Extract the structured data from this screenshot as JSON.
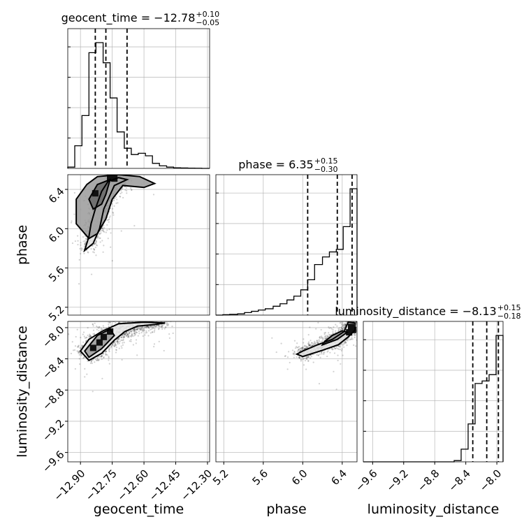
{
  "chart_data": {
    "type": "corner",
    "parameters": [
      "geocent_time",
      "phase",
      "luminosity_distance"
    ],
    "axis_labels": {
      "geocent_time": "geocent_time",
      "phase": "phase",
      "luminosity_distance": "luminosity_distance"
    },
    "titles": [
      {
        "param": "geocent_time",
        "prefix": "geocent_time = ",
        "value": "−12.78",
        "plus": "+0.10",
        "minus": "−0.05"
      },
      {
        "param": "phase",
        "prefix": "phase = ",
        "value": "6.35",
        "plus": "+0.15",
        "minus": "−0.30"
      },
      {
        "param": "luminosity_distance",
        "prefix": "luminosity_distance = ",
        "value": "−8.13",
        "plus": "+0.15",
        "minus": "−0.18"
      }
    ],
    "ranges": {
      "geocent_time": [
        -12.96,
        -12.29
      ],
      "phase": [
        5.12,
        6.55
      ],
      "luminosity_distance": [
        -9.72,
        -7.92
      ]
    },
    "ticks": {
      "geocent_time": [
        -12.9,
        -12.75,
        -12.6,
        -12.45,
        -12.3
      ],
      "phase": [
        5.2,
        5.6,
        6.0,
        6.4
      ],
      "luminosity_distance": [
        -9.6,
        -9.2,
        -8.8,
        -8.4,
        -8.0
      ]
    },
    "tick_labels": {
      "geocent_time": [
        "−12.90",
        "−12.75",
        "−12.60",
        "−12.45",
        "−12.30"
      ],
      "phase": [
        "5.2",
        "5.6",
        "6.0",
        "6.4"
      ],
      "luminosity_distance": [
        "−9.6",
        "−9.2",
        "−8.8",
        "−8.4",
        "−8.0"
      ]
    },
    "quantiles": {
      "geocent_time": [
        -12.83,
        -12.78,
        -12.68
      ],
      "phase": [
        6.05,
        6.35,
        6.5
      ],
      "luminosity_distance": [
        -8.31,
        -8.13,
        -7.98
      ]
    },
    "histograms": {
      "geocent_time": {
        "edges": [
          -12.96,
          -12.927,
          -12.893,
          -12.86,
          -12.827,
          -12.793,
          -12.76,
          -12.727,
          -12.693,
          -12.66,
          -12.627,
          -12.593,
          -12.56,
          -12.527,
          -12.493,
          -12.46,
          -12.427,
          -12.393,
          -12.36,
          -12.327,
          -12.29
        ],
        "counts": [
          0.01,
          0.18,
          0.42,
          0.92,
          1.0,
          0.84,
          0.56,
          0.29,
          0.16,
          0.11,
          0.12,
          0.1,
          0.04,
          0.02,
          0.01,
          0.005,
          0.003,
          0.002,
          0.001,
          0.0
        ]
      },
      "phase": {
        "edges": [
          5.12,
          5.19,
          5.26,
          5.34,
          5.41,
          5.48,
          5.55,
          5.62,
          5.7,
          5.77,
          5.84,
          5.91,
          5.98,
          6.05,
          6.12,
          6.2,
          6.27,
          6.34,
          6.41,
          6.48,
          6.55
        ],
        "counts": [
          0.0,
          0.003,
          0.006,
          0.01,
          0.02,
          0.03,
          0.04,
          0.05,
          0.07,
          0.09,
          0.12,
          0.15,
          0.2,
          0.28,
          0.4,
          0.46,
          0.5,
          0.52,
          0.7,
          1.0
        ]
      },
      "luminosity_distance": {
        "edges": [
          -9.72,
          -9.63,
          -9.54,
          -9.45,
          -9.36,
          -9.27,
          -9.18,
          -9.09,
          -9.0,
          -8.91,
          -8.82,
          -8.73,
          -8.64,
          -8.55,
          -8.46,
          -8.37,
          -8.28,
          -8.19,
          -8.1,
          -8.01,
          -7.92
        ],
        "counts": [
          0.0,
          0.0,
          0.0,
          0.0,
          0.0,
          0.0,
          0.0,
          0.0,
          0.0,
          0.0,
          0.0,
          0.0,
          0.0,
          0.01,
          0.1,
          0.3,
          0.62,
          0.64,
          0.69,
          1.0
        ]
      }
    },
    "pairs": [
      {
        "x": "geocent_time",
        "y": "phase",
        "contours": [
          [
            [
              -12.88,
              5.78
            ],
            [
              -12.86,
              5.92
            ],
            [
              -12.85,
              6.05
            ],
            [
              -12.83,
              6.2
            ],
            [
              -12.8,
              6.38
            ],
            [
              -12.77,
              6.48
            ],
            [
              -12.72,
              6.52
            ],
            [
              -12.68,
              6.5
            ],
            [
              -12.74,
              6.44
            ],
            [
              -12.79,
              6.2
            ],
            [
              -12.81,
              6.0
            ],
            [
              -12.84,
              5.85
            ]
          ],
          [
            [
              -12.92,
              6.05
            ],
            [
              -12.92,
              6.3
            ],
            [
              -12.87,
              6.45
            ],
            [
              -12.82,
              6.53
            ],
            [
              -12.72,
              6.55
            ],
            [
              -12.62,
              6.53
            ],
            [
              -12.55,
              6.46
            ],
            [
              -12.6,
              6.42
            ],
            [
              -12.7,
              6.44
            ],
            [
              -12.75,
              6.3
            ],
            [
              -12.78,
              6.1
            ],
            [
              -12.82,
              5.95
            ],
            [
              -12.86,
              5.9
            ]
          ],
          [
            [
              -12.86,
              6.3
            ],
            [
              -12.82,
              6.45
            ],
            [
              -12.76,
              6.5
            ],
            [
              -12.78,
              6.35
            ],
            [
              -12.8,
              6.25
            ],
            [
              -12.84,
              6.2
            ]
          ]
        ],
        "dense_cells": [
          [
            -12.76,
            6.52
          ],
          [
            -12.74,
            6.51
          ],
          [
            -12.83,
            6.36
          ]
        ]
      },
      {
        "x": "geocent_time",
        "y": "luminosity_distance",
        "contours": [
          [
            [
              -12.9,
              -8.3
            ],
            [
              -12.86,
              -8.42
            ],
            [
              -12.8,
              -8.33
            ],
            [
              -12.74,
              -8.16
            ],
            [
              -12.69,
              -8.05
            ],
            [
              -12.63,
              -7.98
            ],
            [
              -12.55,
              -7.96
            ],
            [
              -12.5,
              -7.94
            ],
            [
              -12.6,
              -7.93
            ],
            [
              -12.72,
              -7.95
            ],
            [
              -12.8,
              -8.05
            ],
            [
              -12.86,
              -8.15
            ]
          ],
          [
            [
              -12.88,
              -8.3
            ],
            [
              -12.86,
              -8.38
            ],
            [
              -12.8,
              -8.27
            ],
            [
              -12.74,
              -8.1
            ],
            [
              -12.76,
              -8.02
            ],
            [
              -12.82,
              -8.1
            ]
          ]
        ],
        "dense_cells": [
          [
            -12.84,
            -8.26
          ],
          [
            -12.81,
            -8.19
          ],
          [
            -12.79,
            -8.12
          ],
          [
            -12.76,
            -8.05
          ]
        ]
      },
      {
        "x": "phase",
        "y": "luminosity_distance",
        "contours": [
          [
            [
              6.0,
              -8.37
            ],
            [
              6.2,
              -8.29
            ],
            [
              6.36,
              -8.22
            ],
            [
              6.46,
              -8.12
            ],
            [
              6.53,
              -8.03
            ],
            [
              6.53,
              -7.94
            ],
            [
              6.46,
              -7.93
            ],
            [
              6.42,
              -8.05
            ],
            [
              6.3,
              -8.15
            ],
            [
              6.15,
              -8.22
            ],
            [
              6.0,
              -8.3
            ],
            [
              5.94,
              -8.34
            ]
          ],
          [
            [
              6.2,
              -8.22
            ],
            [
              6.35,
              -8.15
            ],
            [
              6.45,
              -8.06
            ],
            [
              6.4,
              -8.04
            ],
            [
              6.3,
              -8.1
            ],
            [
              6.22,
              -8.18
            ]
          ]
        ],
        "dense_cells": [
          [
            6.51,
            -8.03
          ],
          [
            6.49,
            -7.99
          ],
          [
            6.47,
            -8.06
          ]
        ]
      }
    ]
  }
}
